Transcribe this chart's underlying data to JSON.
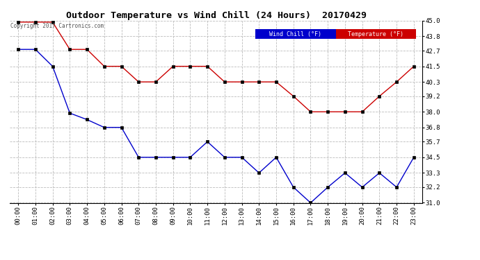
{
  "title": "Outdoor Temperature vs Wind Chill (24 Hours)  20170429",
  "copyright_text": "Copyright 2017 Cartronics.com",
  "hours": [
    "00:00",
    "01:00",
    "02:00",
    "03:00",
    "04:00",
    "05:00",
    "06:00",
    "07:00",
    "08:00",
    "09:00",
    "10:00",
    "11:00",
    "12:00",
    "13:00",
    "14:00",
    "15:00",
    "16:00",
    "17:00",
    "18:00",
    "19:00",
    "20:00",
    "21:00",
    "22:00",
    "23:00"
  ],
  "temperature": [
    44.9,
    44.9,
    44.9,
    42.8,
    42.8,
    41.5,
    41.5,
    40.3,
    40.3,
    41.5,
    41.5,
    41.5,
    40.3,
    40.3,
    40.3,
    40.3,
    39.2,
    38.0,
    38.0,
    38.0,
    38.0,
    39.2,
    40.3,
    41.5
  ],
  "wind_chill": [
    42.8,
    42.8,
    41.5,
    37.9,
    37.4,
    36.8,
    36.8,
    34.5,
    34.5,
    34.5,
    34.5,
    35.7,
    34.5,
    34.5,
    33.3,
    34.5,
    32.2,
    31.0,
    32.2,
    33.3,
    32.2,
    33.3,
    32.2,
    34.5
  ],
  "ylim_min": 31.0,
  "ylim_max": 45.0,
  "yticks": [
    31.0,
    32.2,
    33.3,
    34.5,
    35.7,
    36.8,
    38.0,
    39.2,
    40.3,
    41.5,
    42.7,
    43.8,
    45.0
  ],
  "temp_color": "#cc0000",
  "wind_chill_color": "#0000cc",
  "background_color": "#ffffff",
  "grid_color": "#bbbbbb",
  "legend_wind_chill_bg": "#0000cc",
  "legend_temp_bg": "#cc0000",
  "legend_wind_chill_label": "Wind Chill (°F)",
  "legend_temp_label": "Temperature (°F)"
}
